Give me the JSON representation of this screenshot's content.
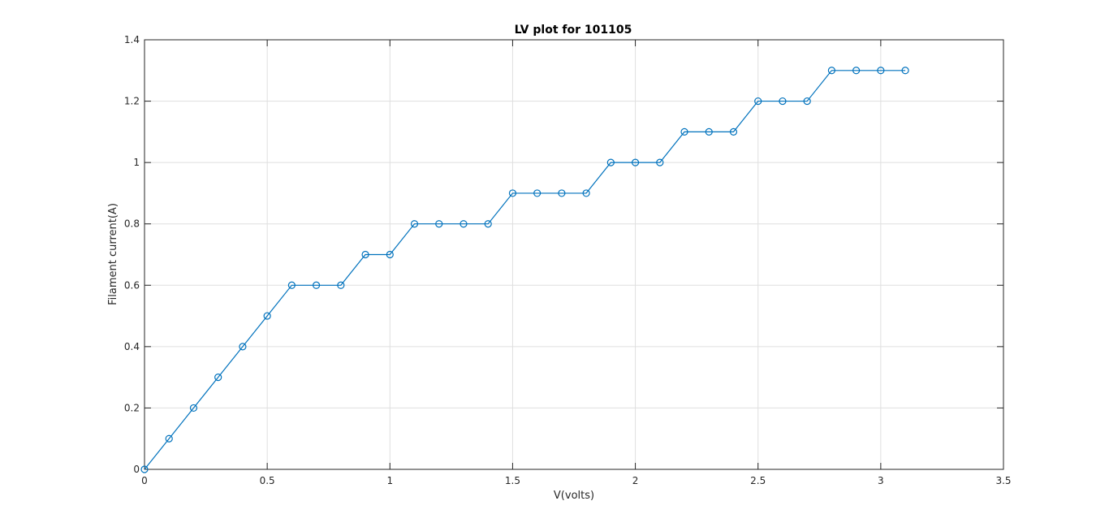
{
  "chart_data": {
    "type": "line",
    "title": "LV plot for 101105",
    "xlabel": "V(volts)",
    "ylabel": "Filament current(A)",
    "xlim": [
      0,
      3.5
    ],
    "ylim": [
      0,
      1.4
    ],
    "xticks": [
      "0",
      "0.5",
      "1",
      "1.5",
      "2",
      "2.5",
      "3",
      "3.5"
    ],
    "yticks": [
      "0",
      "0.2",
      "0.4",
      "0.6",
      "0.8",
      "1",
      "1.2",
      "1.4"
    ],
    "grid": true,
    "marker": "circle",
    "line_color": "#0072BD",
    "series": [
      {
        "x": [
          0,
          0.1,
          0.2,
          0.3,
          0.4,
          0.5,
          0.6,
          0.7,
          0.8,
          0.9,
          1.0,
          1.1,
          1.2,
          1.3,
          1.4,
          1.5,
          1.6,
          1.7,
          1.8,
          1.9,
          2.0,
          2.1,
          2.2,
          2.3,
          2.4,
          2.5,
          2.6,
          2.7,
          2.8,
          2.9,
          3.0,
          3.1
        ],
        "y": [
          0,
          0.1,
          0.2,
          0.3,
          0.4,
          0.5,
          0.6,
          0.6,
          0.6,
          0.7,
          0.7,
          0.8,
          0.8,
          0.8,
          0.8,
          0.9,
          0.9,
          0.9,
          0.9,
          1.0,
          1.0,
          1.0,
          1.1,
          1.1,
          1.1,
          1.2,
          1.2,
          1.2,
          1.3,
          1.3,
          1.3,
          1.3
        ]
      }
    ]
  }
}
